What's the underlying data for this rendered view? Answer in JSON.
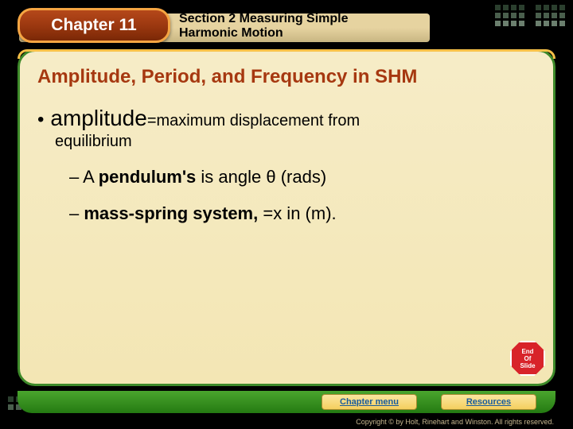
{
  "header": {
    "chapter_label": "Chapter 11",
    "section_line1": "Section 2",
    "section_line1_rest": " Measuring Simple",
    "section_line2": "Harmonic Motion"
  },
  "slide": {
    "title": "Amplitude, Period, and Frequency in SHM",
    "bullet_term": "amplitude",
    "bullet_def_part1": "=maximum displacement from",
    "bullet_def_part2": "equilibrium",
    "sub1_prefix": "– A ",
    "sub1_bold": "pendulum's",
    "sub1_rest": " is angle θ (rads)",
    "sub2_prefix": "– ",
    "sub2_bold": "mass-spring system,",
    "sub2_rest": " =x in (m).",
    "stop_text": "End\nOf\nSlide"
  },
  "footer": {
    "chapter_menu": "Chapter menu",
    "resources": "Resources",
    "copyright": "Copyright © by Holt, Rinehart and Winston. All rights reserved."
  },
  "colors": {
    "frame_border": "#3e8a2a",
    "accent_orange": "#f7c148",
    "title_color": "#a63810",
    "bg_cream": "#f6ecc7",
    "bottom_green": "#247a12"
  }
}
